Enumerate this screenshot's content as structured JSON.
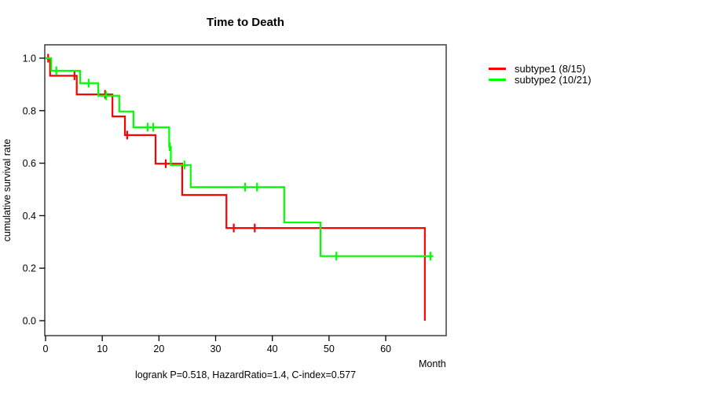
{
  "title": "Time to Death",
  "annotation": "logrank P=0.518, HazardRatio=1.4, C-index=0.577",
  "axes": {
    "x": {
      "label": "Month",
      "ticks": [
        0,
        10,
        20,
        30,
        40,
        50,
        60
      ]
    },
    "y": {
      "label": "cumulative survival rate",
      "ticks": [
        0.0,
        0.2,
        0.4,
        0.6,
        0.8,
        1.0
      ]
    }
  },
  "legend": [
    {
      "label": "subtype1 (8/15)",
      "color": "#ff0000"
    },
    {
      "label": "subtype2 (10/21)",
      "color": "#00ff00"
    }
  ],
  "chart_data": {
    "type": "line",
    "subtype": "kaplan-meier-step",
    "title": "Time to Death",
    "xlabel": "Month",
    "ylabel": "cumulative survival rate",
    "xlim": [
      0,
      70.7
    ],
    "ylim": [
      0.0,
      1.0
    ],
    "grid": false,
    "legend_position": "top-right-outside",
    "annotation": "logrank P=0.518, HazardRatio=1.4, C-index=0.577",
    "series": [
      {
        "name": "subtype1 (8/15)",
        "color": "#ff0000",
        "events": "8/15",
        "steps": [
          [
            0,
            1.0
          ],
          [
            0.8,
            0.933
          ],
          [
            5.5,
            0.862
          ],
          [
            11.8,
            0.778
          ],
          [
            14.0,
            0.707
          ],
          [
            19.4,
            0.598
          ],
          [
            24.1,
            0.479
          ],
          [
            31.9,
            0.353
          ],
          [
            66.9,
            0.0
          ]
        ],
        "censors": [
          [
            0.45,
            1.0
          ],
          [
            5.1,
            0.933
          ],
          [
            10.5,
            0.862
          ],
          [
            14.4,
            0.707
          ],
          [
            21.2,
            0.598
          ],
          [
            33.2,
            0.353
          ],
          [
            36.9,
            0.353
          ]
        ],
        "end_time": 66.9
      },
      {
        "name": "subtype2 (10/21)",
        "color": "#00ff00",
        "events": "10/21",
        "steps": [
          [
            0,
            1.0
          ],
          [
            1.0,
            0.952
          ],
          [
            6.1,
            0.905
          ],
          [
            9.3,
            0.857
          ],
          [
            13.0,
            0.797
          ],
          [
            15.5,
            0.737
          ],
          [
            21.8,
            0.663
          ],
          [
            22.1,
            0.593
          ],
          [
            25.6,
            0.509
          ],
          [
            42.1,
            0.374
          ],
          [
            48.5,
            0.246
          ]
        ],
        "censors": [
          [
            1.9,
            0.952
          ],
          [
            7.6,
            0.905
          ],
          [
            10.7,
            0.857
          ],
          [
            18.0,
            0.737
          ],
          [
            19.0,
            0.737
          ],
          [
            21.9,
            0.663
          ],
          [
            24.5,
            0.593
          ],
          [
            35.2,
            0.509
          ],
          [
            37.3,
            0.509
          ],
          [
            51.3,
            0.246
          ],
          [
            67.9,
            0.246
          ]
        ],
        "end_time": 68.4
      }
    ]
  }
}
